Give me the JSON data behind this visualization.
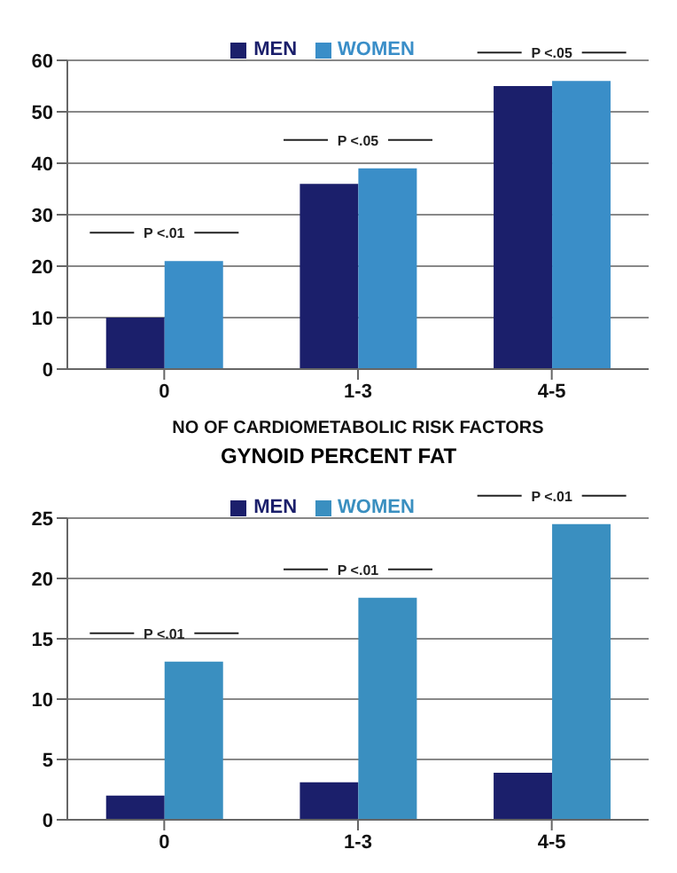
{
  "chart_data": [
    {
      "type": "bar",
      "categories": [
        "0",
        "1-3",
        "4-5"
      ],
      "xlabel": "NO OF CARDIOMETABOLIC RISK FACTORS",
      "series": [
        {
          "name": "MEN",
          "color": "#1b1f6b",
          "values": [
            10,
            36,
            55
          ]
        },
        {
          "name": "WOMEN",
          "color": "#3a8ec8",
          "values": [
            21,
            39,
            56
          ]
        }
      ],
      "ylim": [
        0,
        60
      ],
      "yticks": [
        0,
        10,
        20,
        30,
        40,
        50,
        60
      ],
      "grid": "y",
      "legend": "top",
      "annotations": [
        "P <.01",
        "P <.05",
        "P <.05"
      ]
    },
    {
      "type": "bar",
      "title": "GYNOID PERCENT FAT",
      "categories": [
        "0",
        "1-3",
        "4-5"
      ],
      "series": [
        {
          "name": "MEN",
          "color": "#1b1f6b",
          "values": [
            2,
            3.1,
            3.9
          ]
        },
        {
          "name": "WOMEN",
          "color": "#3a8fc0",
          "values": [
            13.1,
            18.4,
            24.5
          ]
        }
      ],
      "ylim": [
        0,
        25
      ],
      "yticks": [
        0,
        5,
        10,
        15,
        20,
        25
      ],
      "grid": "y",
      "legend": "top",
      "annotations": [
        "P <.01",
        "P <.01",
        "P <.01"
      ]
    }
  ]
}
